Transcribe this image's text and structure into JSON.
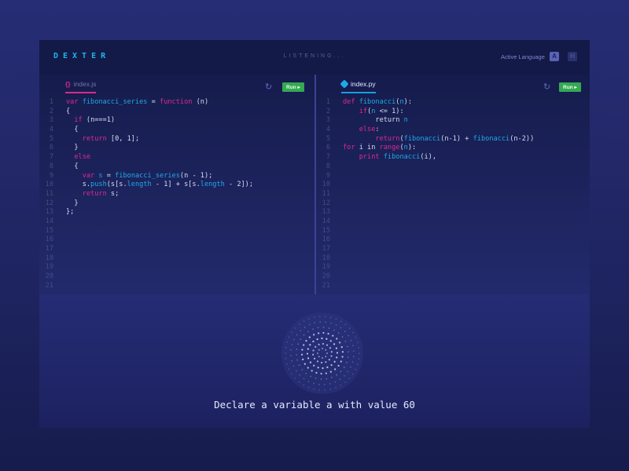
{
  "header": {
    "logo": "DEXTER",
    "status": "LISTENING...",
    "active_language_label": "Active Language",
    "languages": [
      "A",
      "H"
    ]
  },
  "editors": [
    {
      "tab": "index.js",
      "icon": "braces-icon",
      "run_label": "Run ▸",
      "lines": [
        [
          [
            "k",
            "var "
          ],
          [
            "f",
            "fibonacci_series"
          ],
          [
            "p",
            " = "
          ],
          [
            "k",
            "function"
          ],
          [
            "p",
            " (n)"
          ]
        ],
        [
          [
            "p",
            "{"
          ]
        ],
        [
          [
            "p",
            "  "
          ],
          [
            "k",
            "if"
          ],
          [
            "p",
            " (n===1)"
          ]
        ],
        [
          [
            "p",
            "  {"
          ]
        ],
        [
          [
            "p",
            "    "
          ],
          [
            "k",
            "return"
          ],
          [
            "p",
            " [0, 1];"
          ]
        ],
        [
          [
            "p",
            "  }"
          ]
        ],
        [
          [
            "p",
            "  "
          ],
          [
            "k",
            "else"
          ]
        ],
        [
          [
            "p",
            "  {"
          ]
        ],
        [
          [
            "p",
            "    "
          ],
          [
            "k",
            "var "
          ],
          [
            "f",
            "s"
          ],
          [
            "p",
            " = "
          ],
          [
            "f",
            "fibonacci_series"
          ],
          [
            "p",
            "(n - 1);"
          ]
        ],
        [
          [
            "p",
            "    s."
          ],
          [
            "f",
            "push"
          ],
          [
            "p",
            "(s[s."
          ],
          [
            "f",
            "length"
          ],
          [
            "p",
            " - 1] + s[s."
          ],
          [
            "f",
            "length"
          ],
          [
            "p",
            " - 2]);"
          ]
        ],
        [
          [
            "p",
            "    "
          ],
          [
            "k",
            "return"
          ],
          [
            "p",
            " s;"
          ]
        ],
        [
          [
            "p",
            "  }"
          ]
        ],
        [
          [
            "p",
            "};"
          ]
        ],
        [],
        [],
        [],
        [],
        [],
        [],
        [],
        []
      ]
    },
    {
      "tab": "index.py",
      "icon": "python-icon",
      "run_label": "Run ▸",
      "lines": [
        [
          [
            "k",
            "def "
          ],
          [
            "f",
            "fibonacci"
          ],
          [
            "p",
            "("
          ],
          [
            "f",
            "n"
          ],
          [
            "p",
            "):"
          ]
        ],
        [
          [
            "p",
            "    "
          ],
          [
            "k",
            "if"
          ],
          [
            "p",
            "("
          ],
          [
            "f",
            "n"
          ],
          [
            "p",
            " <= 1):"
          ]
        ],
        [
          [
            "p",
            "        return "
          ],
          [
            "f",
            "n"
          ]
        ],
        [
          [
            "p",
            "    "
          ],
          [
            "k",
            "else"
          ],
          [
            "p",
            ":"
          ]
        ],
        [
          [
            "p",
            "        "
          ],
          [
            "k",
            "return"
          ],
          [
            "p",
            "("
          ],
          [
            "f",
            "fibonacci"
          ],
          [
            "p",
            "(n-1) + "
          ],
          [
            "f",
            "fibonacci"
          ],
          [
            "p",
            "(n-2))"
          ]
        ],
        [
          [
            "k",
            "for"
          ],
          [
            "p",
            " i in "
          ],
          [
            "k",
            "range"
          ],
          [
            "p",
            "("
          ],
          [
            "f",
            "n"
          ],
          [
            "p",
            "):"
          ]
        ],
        [
          [
            "p",
            "    "
          ],
          [
            "k",
            "print "
          ],
          [
            "f",
            "fibonacci"
          ],
          [
            "p",
            "(i),"
          ]
        ],
        [],
        [],
        [],
        [],
        [],
        [],
        [],
        [],
        [],
        [],
        [],
        [],
        [],
        []
      ]
    }
  ],
  "voice": {
    "prompt": "Declare a variable a with value 60"
  },
  "colors": {
    "keyword": "#e0288f",
    "identifier": "#1fa9e8",
    "run": "#35a854",
    "accent": "#1fb4ea"
  }
}
